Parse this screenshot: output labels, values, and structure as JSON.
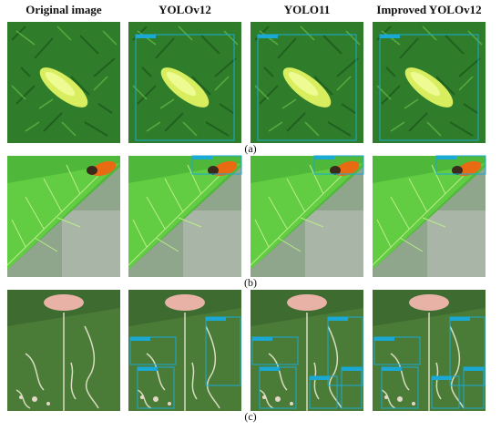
{
  "columns": [
    "Original image",
    "YOLOv12",
    "YOLO11",
    "Improved YOLOv12"
  ],
  "rows": [
    "(a)",
    "(b)",
    "(c)"
  ]
}
